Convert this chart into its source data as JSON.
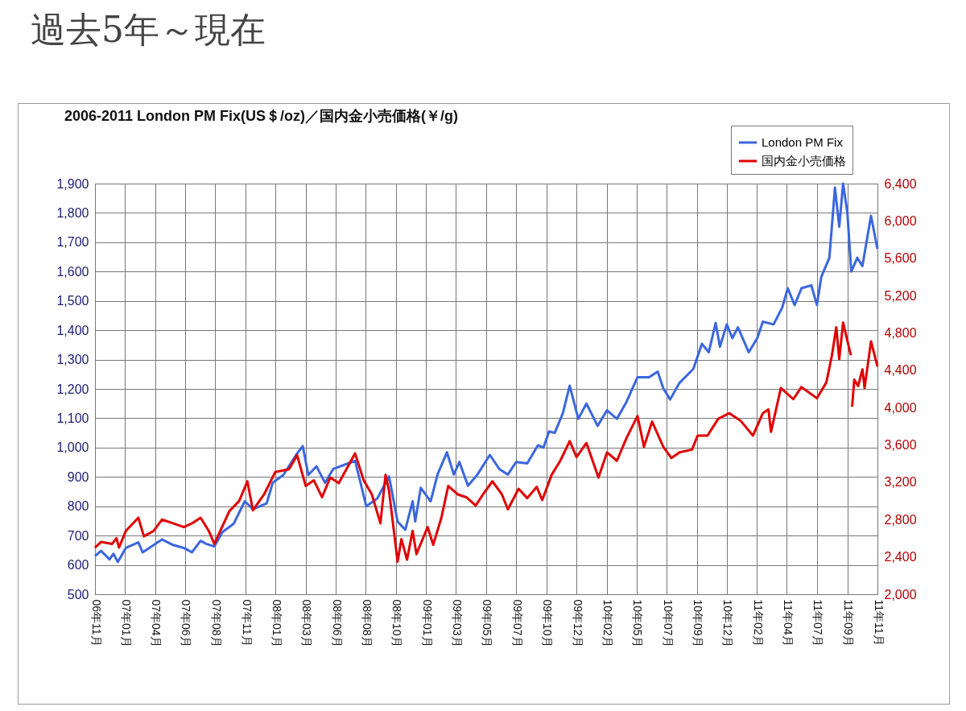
{
  "chart_data": {
    "type": "line",
    "title": "過去5年～現在",
    "subtitle": "2006-2011 London PM Fix(US＄/oz)／国内金小売価格(￥/g)",
    "xlim": [
      "2006-11-22",
      "2011-11-19"
    ],
    "xticks": [
      {
        "value": "2006-11-22",
        "label": "06年11月"
      },
      {
        "value": "2007-01-31",
        "label": "07年01月"
      },
      {
        "value": "2007-04-11",
        "label": "07年04月"
      },
      {
        "value": "2007-06-20",
        "label": "07年06月"
      },
      {
        "value": "2007-08-29",
        "label": "07年08月"
      },
      {
        "value": "2007-11-08",
        "label": "07年11月"
      },
      {
        "value": "2008-01-17",
        "label": "08年01月"
      },
      {
        "value": "2008-03-27",
        "label": "08年03月"
      },
      {
        "value": "2008-06-05",
        "label": "08年06月"
      },
      {
        "value": "2008-08-14",
        "label": "08年08月"
      },
      {
        "value": "2008-10-23",
        "label": "08年10月"
      },
      {
        "value": "2009-01-01",
        "label": "09年01月"
      },
      {
        "value": "2009-03-12",
        "label": "09年03月"
      },
      {
        "value": "2009-05-21",
        "label": "09年05月"
      },
      {
        "value": "2009-07-30",
        "label": "09年07月"
      },
      {
        "value": "2009-10-09",
        "label": "09年10月"
      },
      {
        "value": "2009-12-18",
        "label": "09年12月"
      },
      {
        "value": "2010-02-26",
        "label": "10年02月"
      },
      {
        "value": "2010-05-07",
        "label": "10年05月"
      },
      {
        "value": "2010-07-16",
        "label": "10年07月"
      },
      {
        "value": "2010-09-24",
        "label": "10年09月"
      },
      {
        "value": "2010-12-03",
        "label": "10年12月"
      },
      {
        "value": "2011-02-11",
        "label": "11年02月"
      },
      {
        "value": "2011-04-22",
        "label": "11年04月"
      },
      {
        "value": "2011-07-01",
        "label": "11年07月"
      },
      {
        "value": "2011-09-10",
        "label": "11年09月"
      },
      {
        "value": "2011-11-19",
        "label": "11年11月"
      }
    ],
    "ylim": [
      500,
      1900
    ],
    "yticks": [
      {
        "value": 500,
        "label": "500"
      },
      {
        "value": 600,
        "label": "600"
      },
      {
        "value": 700,
        "label": "700"
      },
      {
        "value": 800,
        "label": "800"
      },
      {
        "value": 900,
        "label": "900"
      },
      {
        "value": 1000,
        "label": "1,000"
      },
      {
        "value": 1100,
        "label": "1,100"
      },
      {
        "value": 1200,
        "label": "1,200"
      },
      {
        "value": 1300,
        "label": "1,300"
      },
      {
        "value": 1400,
        "label": "1,400"
      },
      {
        "value": 1500,
        "label": "1,500"
      },
      {
        "value": 1600,
        "label": "1,600"
      },
      {
        "value": 1700,
        "label": "1,700"
      },
      {
        "value": 1800,
        "label": "1,800"
      },
      {
        "value": 1900,
        "label": "1,900"
      }
    ],
    "y2lim": [
      2000,
      6400
    ],
    "y2ticks": [
      {
        "value": 2000,
        "label": "2,000"
      },
      {
        "value": 2400,
        "label": "2,400"
      },
      {
        "value": 2800,
        "label": "2,800"
      },
      {
        "value": 3200,
        "label": "3,200"
      },
      {
        "value": 3600,
        "label": "3,600"
      },
      {
        "value": 4000,
        "label": "4,000"
      },
      {
        "value": 4400,
        "label": "4,400"
      },
      {
        "value": 4800,
        "label": "4,800"
      },
      {
        "value": 5200,
        "label": "5,200"
      },
      {
        "value": 5600,
        "label": "5,600"
      },
      {
        "value": 6000,
        "label": "6,000"
      },
      {
        "value": 6400,
        "label": "6,400"
      }
    ],
    "grid": true,
    "legend": "top right",
    "line_style": "solid",
    "series": [
      {
        "name": "London PM Fix",
        "color": "#3b66de",
        "x": [
          "2006-11-22",
          "2006-12-06",
          "2006-12-26",
          "2007-01-04",
          "2007-01-14",
          "2007-02-02",
          "2007-03-03",
          "2007-03-13",
          "2007-04-27",
          "2007-05-23",
          "2007-06-17",
          "2007-07-06",
          "2007-07-26",
          "2007-08-08",
          "2007-08-27",
          "2007-09-15",
          "2007-10-11",
          "2007-11-06",
          "2007-11-25",
          "2007-12-27",
          "2008-01-10",
          "2008-02-04",
          "2008-03-07",
          "2008-03-20",
          "2008-04-02",
          "2008-04-21",
          "2008-05-11",
          "2008-05-30",
          "2008-07-20",
          "2008-08-15",
          "2008-09-10",
          "2008-10-07",
          "2008-10-27",
          "2008-11-14",
          "2008-12-01",
          "2008-12-07",
          "2008-12-20",
          "2009-01-12",
          "2009-01-28",
          "2009-02-19",
          "2009-03-07",
          "2009-03-20",
          "2009-04-09",
          "2009-05-01",
          "2009-05-30",
          "2009-06-21",
          "2009-07-11",
          "2009-07-30",
          "2009-08-25",
          "2009-09-19",
          "2009-10-02",
          "2009-10-15",
          "2009-10-28",
          "2009-11-16",
          "2009-12-02",
          "2009-12-22",
          "2010-01-10",
          "2010-02-05",
          "2010-02-27",
          "2010-03-22",
          "2010-04-13",
          "2010-05-09",
          "2010-06-05",
          "2010-06-25",
          "2010-07-08",
          "2010-07-24",
          "2010-08-15",
          "2010-09-16",
          "2010-10-06",
          "2010-10-22",
          "2010-11-07",
          "2010-11-17",
          "2010-12-03",
          "2010-12-16",
          "2010-12-29",
          "2011-01-23",
          "2011-02-12",
          "2011-02-25",
          "2011-03-22",
          "2011-04-11",
          "2011-04-24",
          "2011-05-10",
          "2011-05-26",
          "2011-06-18",
          "2011-07-01",
          "2011-07-11",
          "2011-07-30",
          "2011-08-12",
          "2011-08-22",
          "2011-08-31",
          "2011-09-10",
          "2011-09-19",
          "2011-10-03",
          "2011-10-15",
          "2011-11-04",
          "2011-11-19"
        ],
        "values": [
          630,
          648,
          619,
          638,
          610,
          658,
          677,
          643,
          687,
          668,
          658,
          643,
          682,
          672,
          663,
          712,
          740,
          817,
          790,
          810,
          880,
          907,
          980,
          1005,
          907,
          936,
          880,
          927,
          955,
          800,
          827,
          902,
          748,
          720,
          817,
          748,
          863,
          817,
          908,
          984,
          908,
          951,
          870,
          908,
          975,
          927,
          908,
          951,
          946,
          1008,
          1000,
          1055,
          1050,
          1117,
          1211,
          1098,
          1150,
          1074,
          1127,
          1098,
          1155,
          1240,
          1240,
          1259,
          1202,
          1164,
          1221,
          1268,
          1354,
          1325,
          1425,
          1344,
          1420,
          1373,
          1410,
          1325,
          1373,
          1429,
          1420,
          1477,
          1543,
          1486,
          1543,
          1553,
          1486,
          1581,
          1647,
          1886,
          1753,
          1900,
          1799,
          1600,
          1647,
          1619,
          1790,
          1677
        ]
      },
      {
        "name": "国内金小売価格",
        "color": "#e00000",
        "axis": "y2",
        "x": [
          "2006-11-22",
          "2006-12-06",
          "2007-01-01",
          "2007-01-11",
          "2007-01-17",
          "2007-02-02",
          "2007-03-03",
          "2007-03-16",
          "2007-04-08",
          "2007-04-27",
          "2007-05-23",
          "2007-06-17",
          "2007-07-06",
          "2007-07-26",
          "2007-08-14",
          "2007-08-27",
          "2007-10-01",
          "2007-10-24",
          "2007-11-12",
          "2007-11-25",
          "2007-12-21",
          "2008-01-16",
          "2008-02-17",
          "2008-03-07",
          "2008-03-27",
          "2008-04-15",
          "2008-05-04",
          "2008-05-23",
          "2008-06-12",
          "2008-07-20",
          "2008-08-09",
          "2008-08-28",
          "2008-09-17",
          "2008-09-29",
          "2008-10-07",
          "2008-10-27",
          "2008-11-05",
          "2008-11-18",
          "2008-12-01",
          "2008-12-10",
          "2009-01-05",
          "2009-01-18",
          "2009-02-06",
          "2009-02-22",
          "2009-03-16",
          "2009-04-05",
          "2009-04-27",
          "2009-05-14",
          "2009-06-05",
          "2009-06-27",
          "2009-07-11",
          "2009-08-05",
          "2009-08-25",
          "2009-09-16",
          "2009-09-29",
          "2009-10-21",
          "2009-11-10",
          "2009-12-02",
          "2009-12-18",
          "2010-01-10",
          "2010-02-07",
          "2010-02-27",
          "2010-03-22",
          "2010-04-13",
          "2010-05-09",
          "2010-05-24",
          "2010-06-12",
          "2010-07-08",
          "2010-07-27",
          "2010-08-15",
          "2010-09-13",
          "2010-09-26",
          "2010-10-19",
          "2010-11-13",
          "2010-12-09",
          "2011-01-04",
          "2011-02-02",
          "2011-02-25",
          "2011-03-10",
          "2011-03-16",
          "2011-04-08",
          "2011-05-07",
          "2011-05-26",
          "2011-07-01",
          "2011-07-23",
          "2011-08-05",
          "2011-08-15",
          "2011-08-22",
          "2011-08-31",
          "2011-09-18",
          "2011-09-19",
          "2011-09-21",
          "2011-09-26",
          "2011-10-05",
          "2011-10-15",
          "2011-10-20",
          "2011-11-04",
          "2011-11-19"
        ],
        "values": [
          2500,
          2560,
          2540,
          2600,
          2500,
          2680,
          2820,
          2620,
          2680,
          2800,
          2760,
          2720,
          2760,
          2820,
          2680,
          2540,
          2890,
          3000,
          3210,
          2900,
          3070,
          3310,
          3340,
          3490,
          3160,
          3220,
          3040,
          3250,
          3190,
          3510,
          3220,
          3070,
          2760,
          3280,
          3110,
          2350,
          2590,
          2370,
          2680,
          2430,
          2720,
          2530,
          2820,
          3160,
          3070,
          3040,
          2950,
          3070,
          3210,
          3070,
          2910,
          3130,
          3030,
          3150,
          3010,
          3280,
          3430,
          3640,
          3470,
          3620,
          3250,
          3520,
          3430,
          3670,
          3910,
          3580,
          3850,
          3580,
          3460,
          3520,
          3550,
          3700,
          3700,
          3880,
          3940,
          3860,
          3700,
          3940,
          3980,
          3740,
          4210,
          4090,
          4220,
          4100,
          4270,
          4560,
          4860,
          4520,
          4910,
          4560,
          null,
          4010,
          4300,
          4230,
          4410,
          4210,
          4710,
          4440
        ]
      }
    ]
  }
}
